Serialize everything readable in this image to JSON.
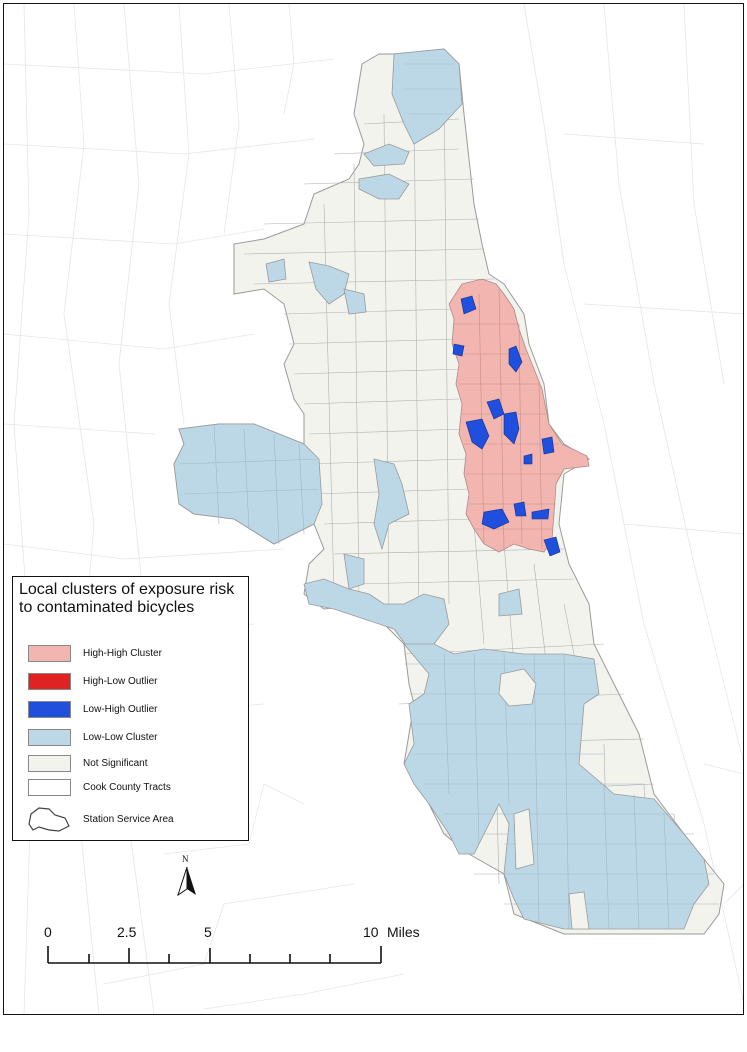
{
  "legend": {
    "title": "Local clusters of exposure risk to contaminated bicycles",
    "items": [
      {
        "label": "High-High Cluster",
        "color": "#f2b5b0"
      },
      {
        "label": "High-Low Outlier",
        "color": "#e02222"
      },
      {
        "label": "Low-High Outlier",
        "color": "#1f4fdc"
      },
      {
        "label": "Low-Low Cluster",
        "color": "#bcd8e6"
      },
      {
        "label": "Not Significant",
        "color": "#f3f3ee"
      },
      {
        "label": "Cook County Tracts",
        "color": "#ffffff"
      }
    ],
    "service_area_label": "Station Service Area"
  },
  "north_label": "N",
  "scale": {
    "labels": [
      "0",
      "2.5",
      "5",
      "10"
    ],
    "unit": "Miles"
  }
}
